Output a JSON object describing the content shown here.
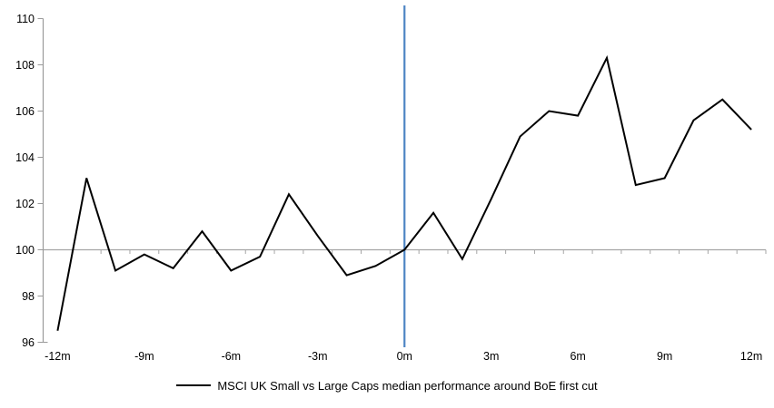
{
  "chart_data": {
    "type": "line",
    "title": "",
    "xlabel": "",
    "ylabel": "",
    "x_unit": "months relative to first cut",
    "x": [
      -12,
      -11,
      -10,
      -9,
      -8,
      -7,
      -6,
      -5,
      -4,
      -3,
      -2,
      -1,
      0,
      1,
      2,
      3,
      4,
      5,
      6,
      7,
      8,
      9,
      10,
      11,
      12
    ],
    "series": [
      {
        "name": "MSCI UK Small vs Large Caps median performance around BoE first cut",
        "color": "#000000",
        "values": [
          96.5,
          103.1,
          99.1,
          99.8,
          99.2,
          100.8,
          99.1,
          99.7,
          102.4,
          100.6,
          98.9,
          99.3,
          100.0,
          101.6,
          99.6,
          102.2,
          104.9,
          106.0,
          105.8,
          108.3,
          102.8,
          103.1,
          105.6,
          106.5,
          105.2
        ]
      }
    ],
    "ylim": [
      96,
      110
    ],
    "y_ticks": [
      96,
      98,
      100,
      102,
      104,
      106,
      108,
      110
    ],
    "x_tick_months": [
      -12,
      -9,
      -6,
      -3,
      0,
      3,
      6,
      9,
      12
    ],
    "x_tick_labels": [
      "-12m",
      "-9m",
      "-6m",
      "-3m",
      "0m",
      "3m",
      "6m",
      "9m",
      "12m"
    ],
    "baseline_value": 100,
    "event_line_x": 0,
    "grid": "off",
    "legend_position": "bottom",
    "colors": {
      "series_line": "#000000",
      "event_line": "#4e85c4",
      "baseline_line": "#a6a6a6",
      "axis_line": "#9b9b9b",
      "tick_label": "#000000"
    }
  },
  "legend": {
    "label": "MSCI UK Small vs Large Caps median performance around BoE first cut"
  }
}
